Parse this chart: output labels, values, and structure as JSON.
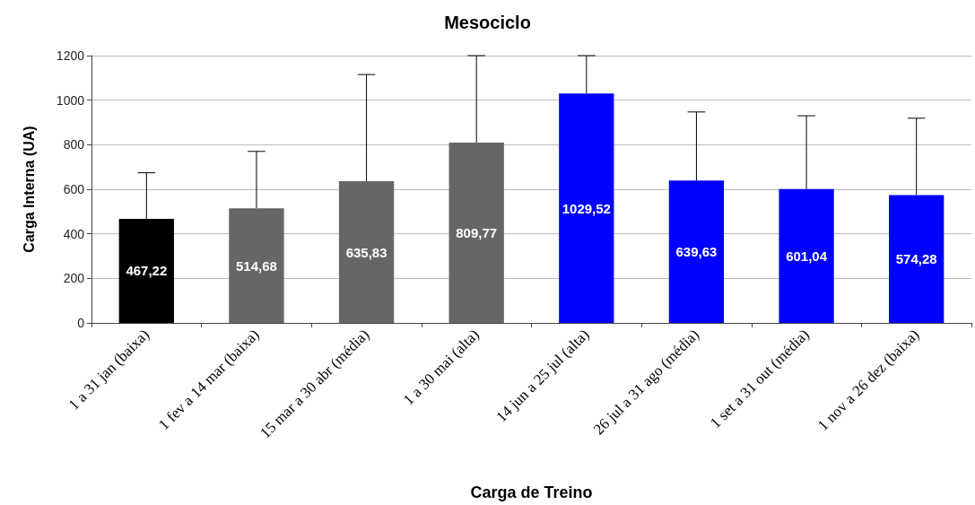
{
  "chart_data": {
    "type": "bar",
    "title": "Mesociclo",
    "xlabel": "Carga de Treino",
    "ylabel": "Carga Interna (UA)",
    "categories": [
      "1 a 31 jan (baixa)",
      "1 fev a 14 mar (baixa)",
      "15 mar a 30 abr (média)",
      "1 a 30 mai (alta)",
      "14 jun a 25 jul (alta)",
      "26 jul a 31 ago (média)",
      "1 set a 31 out (média)",
      "1 nov a 26 dez (baixa)"
    ],
    "values": [
      467.22,
      514.68,
      635.83,
      809.77,
      1029.52,
      639.63,
      601.04,
      574.28
    ],
    "value_labels": [
      "467,22",
      "514,68",
      "635,83",
      "809,77",
      "1029,52",
      "639,63",
      "601,04",
      "574,28"
    ],
    "colors": [
      "#000000",
      "#666666",
      "#666666",
      "#666666",
      "#0000ff",
      "#0000ff",
      "#0000ff",
      "#0000ff"
    ],
    "errors": [
      [
        467.22,
        674
      ],
      [
        514.68,
        770
      ],
      [
        635.83,
        1115
      ],
      [
        809.77,
        1200
      ],
      [
        1029.52,
        1200
      ],
      [
        639.63,
        947
      ],
      [
        601.04,
        930
      ],
      [
        574.28,
        919
      ]
    ],
    "ylim": [
      0,
      1200
    ],
    "yticks": [
      0,
      200,
      400,
      600,
      800,
      1000,
      1200
    ],
    "grid": "y"
  }
}
